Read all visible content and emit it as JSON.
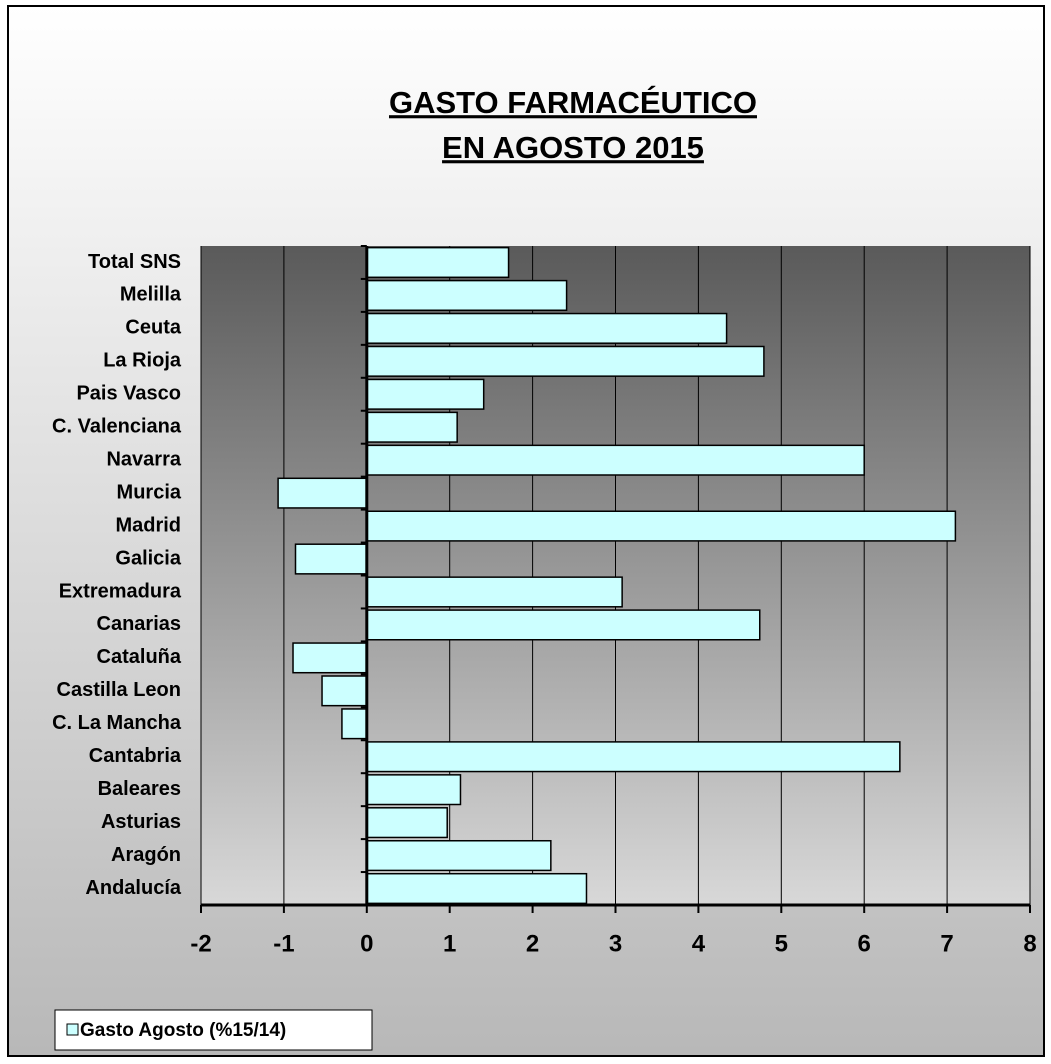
{
  "chart_data": {
    "type": "hbar",
    "title": [
      "GASTO FARMACÉUTICO",
      "EN AGOSTO 2015"
    ],
    "categories": [
      "Total SNS",
      "Melilla",
      "Ceuta",
      "La Rioja",
      "Pais Vasco",
      "C. Valenciana",
      "Navarra",
      "Murcia",
      "Madrid",
      "Galicia",
      "Extremadura",
      "Canarias",
      "Cataluña",
      "Castilla Leon",
      "C. La Mancha",
      "Cantabria",
      "Baleares",
      "Asturias",
      "Aragón",
      "Andalucía"
    ],
    "series": [
      {
        "name": "Gasto Agosto (%15/14)",
        "color": "#ccffff",
        "values": [
          1.71,
          2.41,
          4.34,
          4.79,
          1.41,
          1.09,
          6.0,
          -1.07,
          7.1,
          -0.86,
          3.08,
          4.74,
          -0.89,
          -0.54,
          -0.3,
          6.43,
          1.13,
          0.97,
          2.22,
          2.65
        ]
      }
    ],
    "xlim": [
      -2,
      8
    ],
    "xticks": [
      -2,
      -1,
      0,
      1,
      2,
      3,
      4,
      5,
      6,
      7,
      8
    ],
    "grid": true
  }
}
